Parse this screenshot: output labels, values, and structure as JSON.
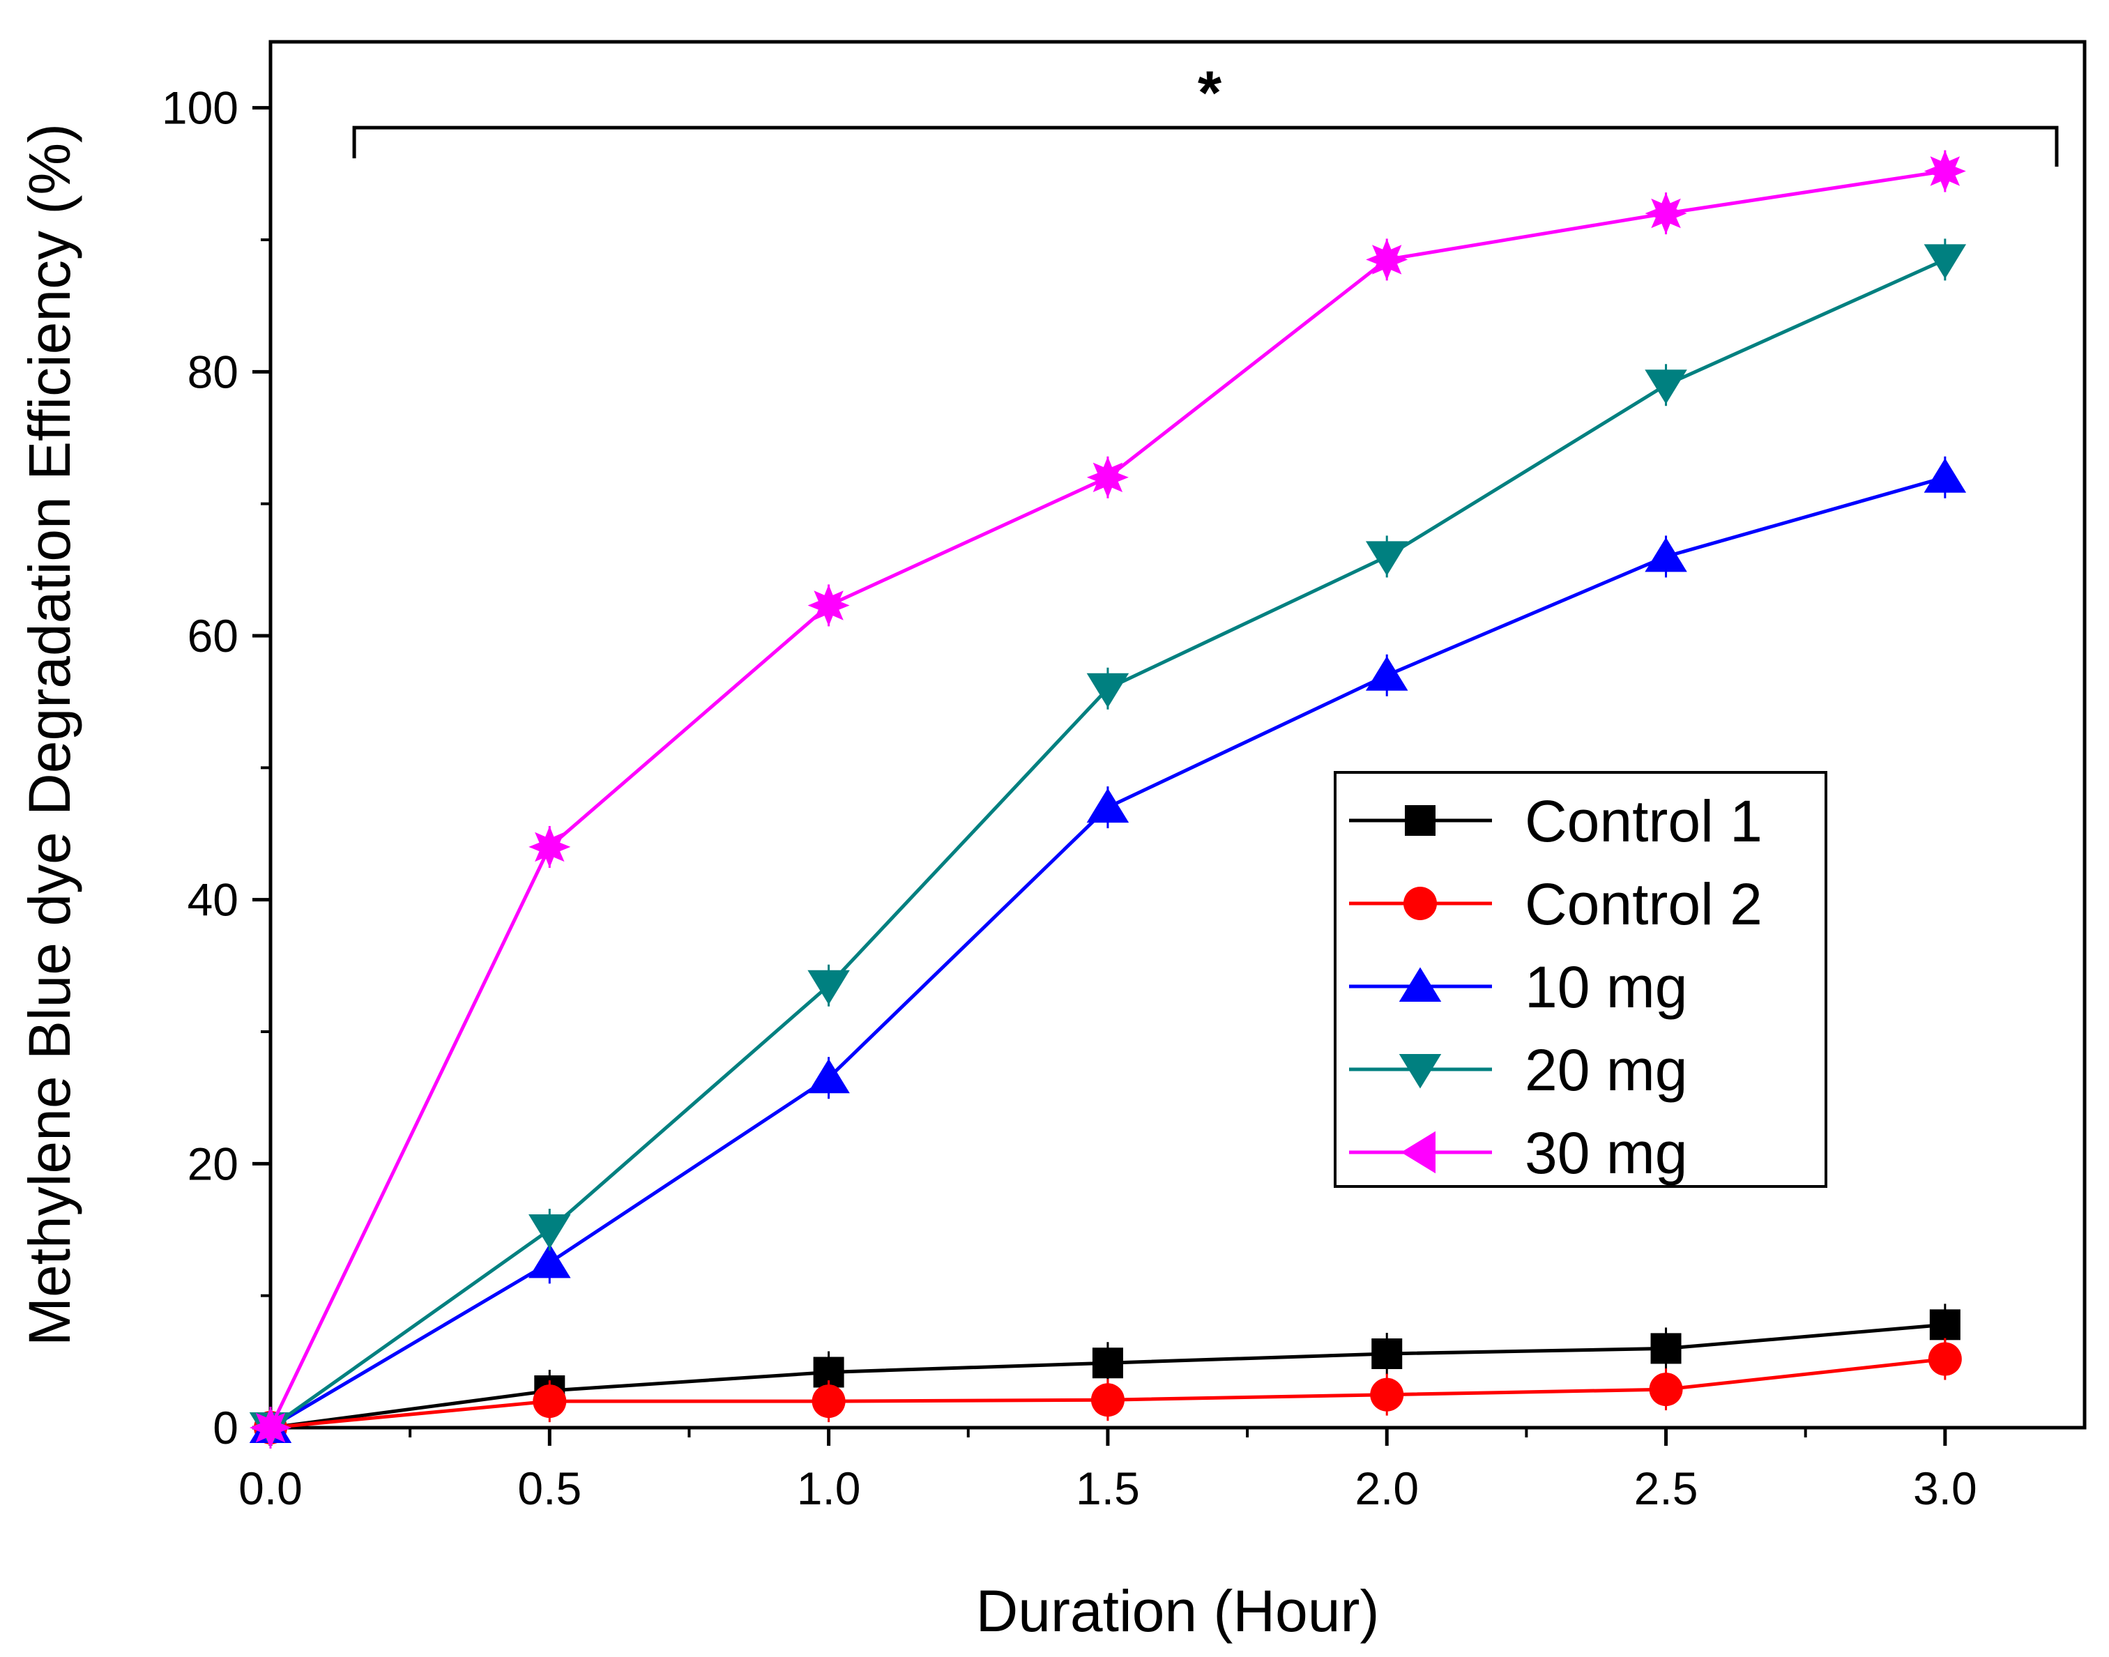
{
  "chart_data": {
    "type": "line",
    "xlabel": "Duration (Hour)",
    "ylabel": "Methylene Blue dye Degradation Efficiency (%)",
    "xlim": [
      0,
      3.25
    ],
    "ylim": [
      0,
      105
    ],
    "x": [
      0.0,
      0.5,
      1.0,
      1.5,
      2.0,
      2.5,
      3.0
    ],
    "xticks": [
      0.0,
      0.5,
      1.0,
      1.5,
      2.0,
      2.5,
      3.0
    ],
    "xtick_labels": [
      "0.0",
      "0.5",
      "1.0",
      "1.5",
      "2.0",
      "2.5",
      "3.0"
    ],
    "yticks": [
      0,
      20,
      40,
      60,
      80,
      100
    ],
    "ytick_labels": [
      "0",
      "20",
      "40",
      "60",
      "80",
      "100"
    ],
    "grid": false,
    "legend_position": "center-right",
    "series": [
      {
        "name": "Control 1",
        "color": "#000000",
        "marker": "square",
        "values": [
          0,
          2.8,
          4.2,
          4.9,
          5.6,
          6.0,
          7.8
        ]
      },
      {
        "name": "Control 2",
        "color": "#ff0000",
        "marker": "circle",
        "values": [
          0,
          2.0,
          2.0,
          2.1,
          2.5,
          2.9,
          5.2
        ]
      },
      {
        "name": "10 mg",
        "color": "#0000ff",
        "marker": "triangle-up",
        "values": [
          0,
          12.5,
          26.5,
          47.0,
          57.0,
          66.0,
          72.0
        ]
      },
      {
        "name": "20 mg",
        "color": "#008080",
        "marker": "triangle-down",
        "values": [
          0,
          15.0,
          33.5,
          56.0,
          66.0,
          79.0,
          88.5
        ]
      },
      {
        "name": "30 mg",
        "color": "#ff00ff",
        "marker": "star",
        "values": [
          0,
          44.0,
          62.3,
          72.0,
          88.5,
          92.0,
          95.2
        ]
      }
    ],
    "annotation": {
      "text": "*",
      "bracket_from_x": 0.15,
      "bracket_to_x": 3.2,
      "bracket_y": 98.5
    }
  }
}
